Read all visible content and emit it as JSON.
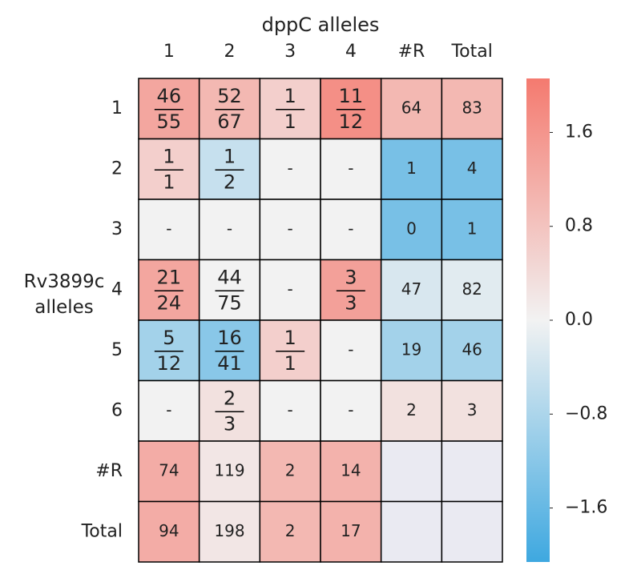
{
  "chart_data": {
    "type": "heatmap",
    "title": "dppC alleles",
    "y_label": "Rv3899c alleles",
    "x_categories": [
      "1",
      "2",
      "3",
      "4",
      "#R",
      "Total"
    ],
    "y_categories": [
      "1",
      "2",
      "3",
      "4",
      "5",
      "6",
      "#R",
      "Total"
    ],
    "annotations": [
      [
        {
          "num": 46,
          "den": 55
        },
        {
          "num": 52,
          "den": 67
        },
        {
          "num": 1,
          "den": 1
        },
        {
          "num": 11,
          "den": 12
        },
        64,
        83
      ],
      [
        {
          "num": 1,
          "den": 1
        },
        {
          "num": 1,
          "den": 2
        },
        "-",
        "-",
        1,
        4
      ],
      [
        "-",
        "-",
        "-",
        "-",
        0,
        1
      ],
      [
        {
          "num": 21,
          "den": 24
        },
        {
          "num": 44,
          "den": 75
        },
        "-",
        {
          "num": 3,
          "den": 3
        },
        47,
        82
      ],
      [
        {
          "num": 5,
          "den": 12
        },
        {
          "num": 16,
          "den": 41
        },
        {
          "num": 1,
          "den": 1
        },
        "-",
        19,
        46
      ],
      [
        "-",
        {
          "num": 2,
          "den": 3
        },
        "-",
        "-",
        2,
        3
      ],
      [
        74,
        119,
        2,
        14,
        null,
        null
      ],
      [
        94,
        198,
        2,
        17,
        null,
        null
      ]
    ],
    "values": [
      [
        1.3,
        1.0,
        0.6,
        1.7,
        1.0,
        1.0
      ],
      [
        0.6,
        -0.5,
        0,
        0,
        -1.4,
        -1.4
      ],
      [
        0,
        0,
        0,
        0,
        -1.4,
        -1.4
      ],
      [
        1.3,
        0,
        0,
        1.4,
        -0.3,
        -0.2
      ],
      [
        -0.9,
        -1.2,
        0.6,
        0,
        -0.9,
        -0.9
      ],
      [
        0,
        0.3,
        0,
        0,
        0.3,
        0.3
      ],
      [
        1.2,
        0.2,
        1.0,
        1.1,
        null,
        null
      ],
      [
        1.2,
        0.2,
        1.0,
        1.1,
        null,
        null
      ]
    ],
    "clim": [
      -2.06,
      2.06
    ],
    "cticks": [
      1.6,
      0.8,
      {
        "value": 0,
        "label": "0.0"
      },
      {
        "value": -0.8,
        "label": "−0.8"
      },
      {
        "value": -1.6,
        "label": "−1.6"
      }
    ],
    "colors": {
      "low": "#3ea8e0",
      "mid": "#f2f2f2",
      "high": "#f47a6f",
      "missing": "#eaeaf2"
    }
  }
}
